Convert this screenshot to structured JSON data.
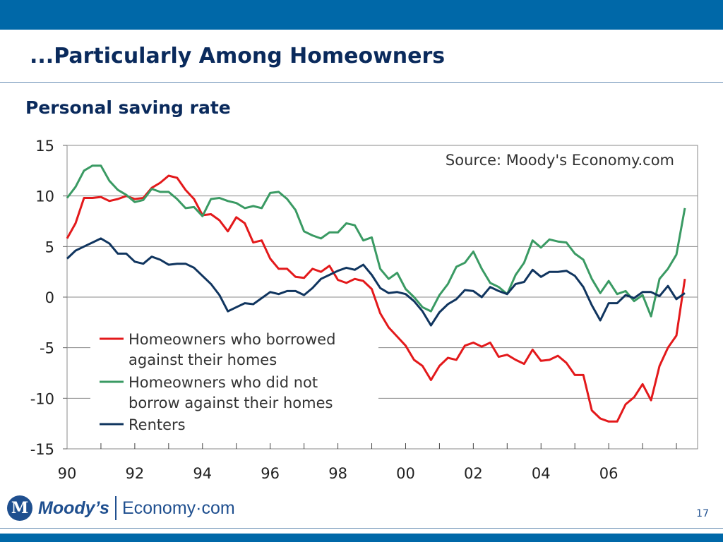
{
  "slide": {
    "title": "...Particularly Among Homeowners",
    "page_number": "17"
  },
  "footer": {
    "brand": "Moody’s",
    "product": "Economy·com"
  },
  "colors": {
    "header_bar": "#0068a8",
    "title_text": "#0a2a5c",
    "series_borrowed": "#e3191b",
    "series_not_borrowed": "#3a9a63",
    "series_renters": "#10355f"
  },
  "chart_data": {
    "type": "line",
    "title": "Personal saving rate",
    "source": "Source: Moody's Economy.com",
    "xlabel": "",
    "ylabel": "",
    "x_ticks": [
      "90",
      "92",
      "94",
      "96",
      "98",
      "00",
      "02",
      "04",
      "06"
    ],
    "x_range": [
      1990,
      2008.625
    ],
    "ylim": [
      -15,
      15
    ],
    "y_ticks": [
      15,
      10,
      5,
      0,
      -5,
      -10,
      -15
    ],
    "grid": "horizontal",
    "legend": "inside bottom-left",
    "x_start": 1990,
    "x_step": 0.25,
    "series": [
      {
        "name": "Homeowners who borrowed against their homes",
        "legend_lines": [
          "Homeowners who borrowed",
          "against their homes"
        ],
        "color": "#e3191b",
        "values": [
          5.8,
          7.3,
          9.8,
          9.8,
          9.9,
          9.5,
          9.7,
          10.0,
          9.7,
          9.8,
          10.8,
          11.3,
          12.0,
          11.8,
          10.6,
          9.7,
          8.1,
          8.2,
          7.6,
          6.5,
          7.9,
          7.3,
          5.4,
          5.6,
          3.8,
          2.8,
          2.8,
          2.0,
          1.9,
          2.8,
          2.5,
          3.1,
          1.7,
          1.4,
          1.8,
          1.6,
          0.8,
          -1.6,
          -3.0,
          -3.9,
          -4.8,
          -6.2,
          -6.8,
          -8.2,
          -6.8,
          -6.0,
          -6.2,
          -4.8,
          -4.5,
          -4.9,
          -4.5,
          -5.9,
          -5.7,
          -6.2,
          -6.6,
          -5.2,
          -6.3,
          -6.2,
          -5.8,
          -6.5,
          -7.7,
          -7.7,
          -11.2,
          -12.0,
          -12.3,
          -12.3,
          -10.6,
          -9.9,
          -8.6,
          -10.2,
          -6.8,
          -5.0,
          -3.8,
          1.8
        ]
      },
      {
        "name": "Homeowners who did not borrow against their homes",
        "legend_lines": [
          "Homeowners who did not",
          "borrow against their homes"
        ],
        "color": "#3a9a63",
        "values": [
          9.8,
          10.9,
          12.5,
          13.0,
          13.0,
          11.5,
          10.6,
          10.1,
          9.4,
          9.6,
          10.7,
          10.4,
          10.4,
          9.7,
          8.8,
          8.9,
          8.0,
          9.7,
          9.8,
          9.5,
          9.3,
          8.8,
          9.0,
          8.8,
          10.3,
          10.4,
          9.7,
          8.6,
          6.5,
          6.1,
          5.8,
          6.4,
          6.4,
          7.3,
          7.1,
          5.6,
          5.9,
          2.8,
          1.8,
          2.4,
          0.8,
          0.0,
          -1.0,
          -1.4,
          0.2,
          1.3,
          3.0,
          3.4,
          4.5,
          2.8,
          1.4,
          1.0,
          0.3,
          2.2,
          3.4,
          5.6,
          4.9,
          5.7,
          5.5,
          5.4,
          4.3,
          3.7,
          1.8,
          0.4,
          1.6,
          0.3,
          0.6,
          -0.4,
          0.2,
          -1.9,
          1.8,
          2.8,
          4.2,
          8.8
        ]
      },
      {
        "name": "Renters",
        "legend_lines": [
          "Renters"
        ],
        "color": "#10355f",
        "values": [
          3.8,
          4.6,
          5.0,
          5.4,
          5.8,
          5.3,
          4.3,
          4.3,
          3.5,
          3.3,
          4.0,
          3.7,
          3.2,
          3.3,
          3.3,
          2.9,
          2.1,
          1.3,
          0.2,
          -1.4,
          -1.0,
          -0.6,
          -0.7,
          -0.1,
          0.5,
          0.3,
          0.6,
          0.6,
          0.2,
          0.9,
          1.8,
          2.2,
          2.6,
          2.9,
          2.7,
          3.2,
          2.2,
          0.9,
          0.4,
          0.5,
          0.3,
          -0.4,
          -1.4,
          -2.8,
          -1.5,
          -0.7,
          -0.2,
          0.7,
          0.6,
          0.0,
          1.0,
          0.6,
          0.3,
          1.3,
          1.5,
          2.7,
          2.0,
          2.5,
          2.5,
          2.6,
          2.1,
          1.0,
          -0.8,
          -2.3,
          -0.6,
          -0.6,
          0.2,
          -0.1,
          0.5,
          0.5,
          0.1,
          1.1,
          -0.2,
          0.4
        ]
      }
    ]
  }
}
